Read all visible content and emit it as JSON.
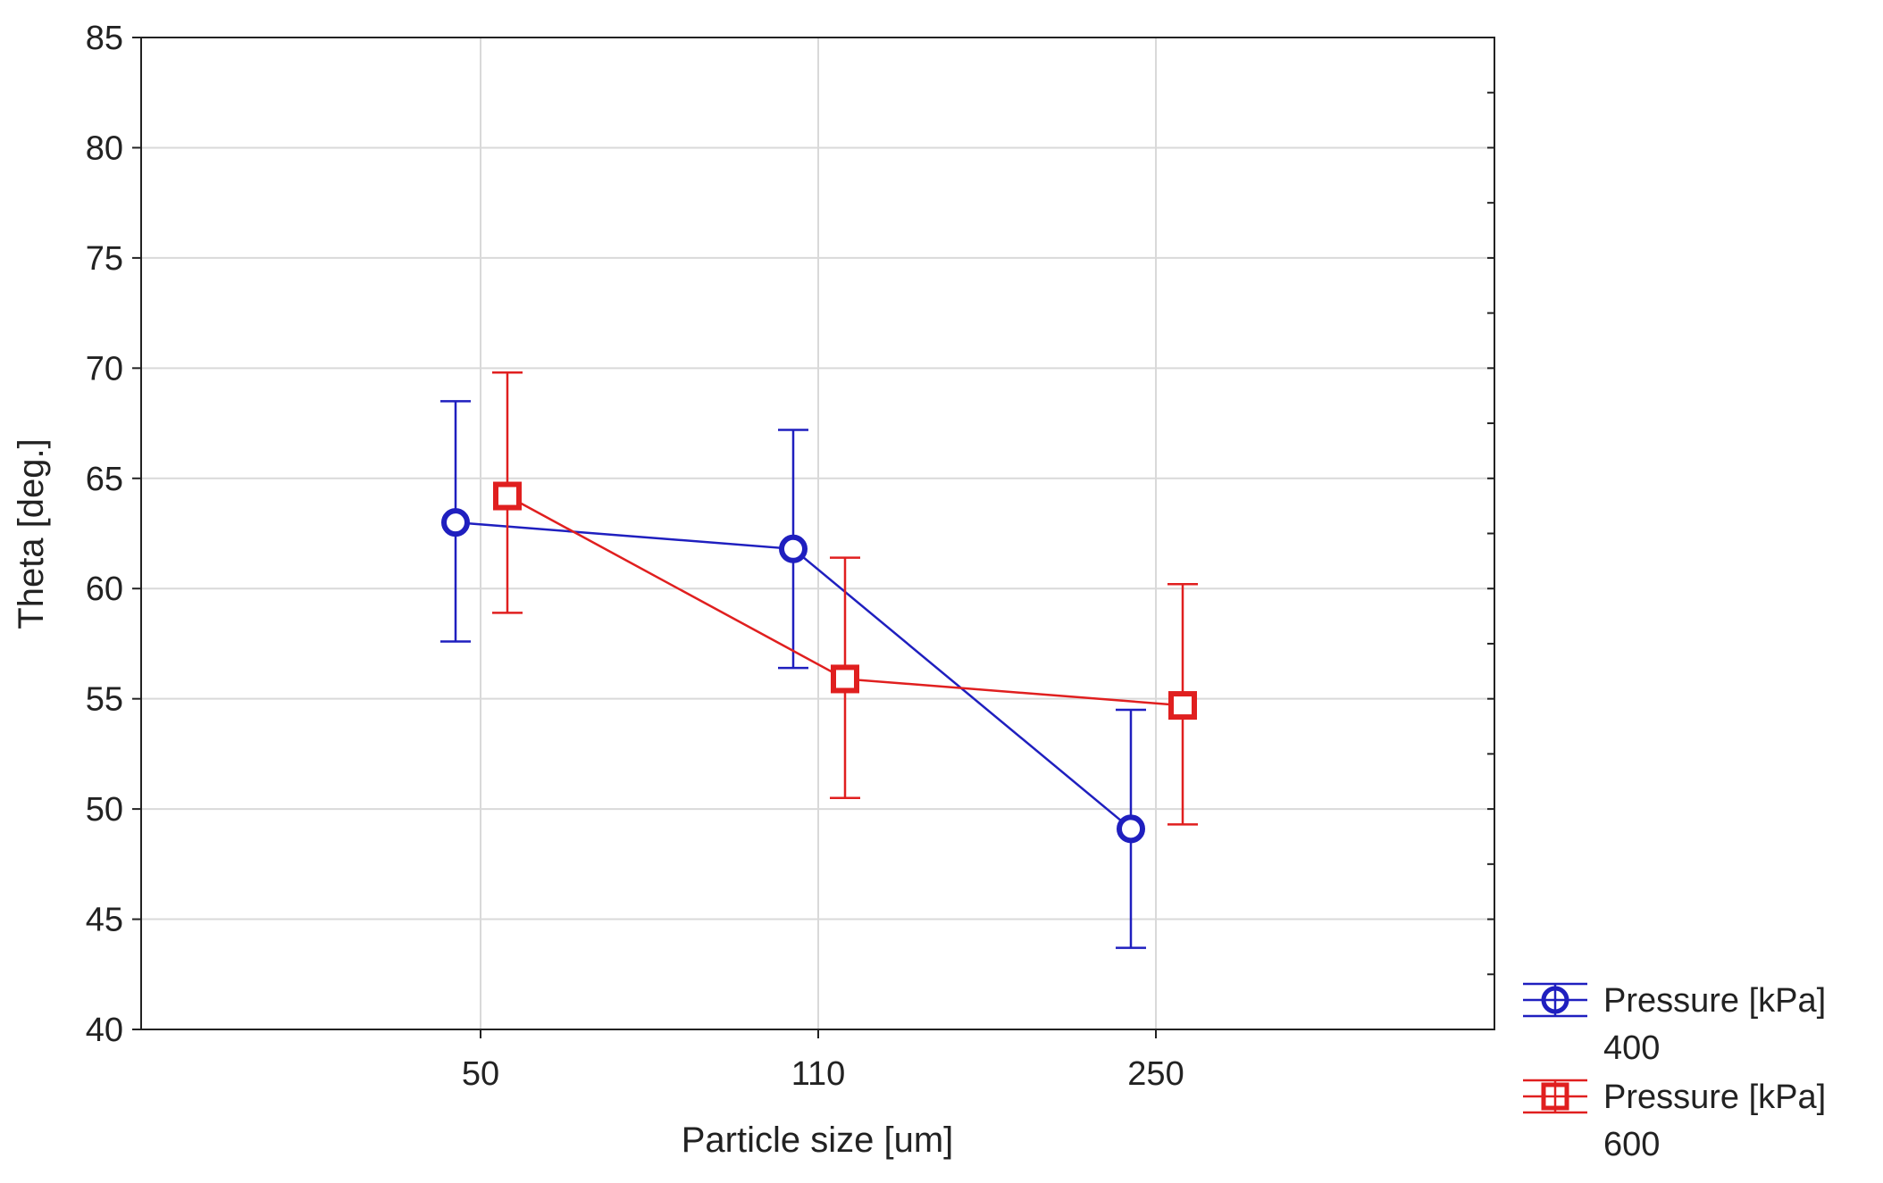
{
  "chart_data": {
    "type": "line",
    "title": "",
    "xlabel": "Particle size [um]",
    "ylabel": "Theta [deg.]",
    "categories": [
      "50",
      "110",
      "250"
    ],
    "ylim": [
      40,
      85
    ],
    "yticks": [
      "40",
      "45",
      "50",
      "55",
      "60",
      "65",
      "70",
      "75",
      "80",
      "85"
    ],
    "grid": true,
    "legend_position": "bottom-right outside",
    "series": [
      {
        "name": "Pressure [kPa] 400",
        "legend_line1": "Pressure [kPa]",
        "legend_line2": "400",
        "color": "#1f1fbf",
        "marker": "circle",
        "values": [
          63.0,
          61.8,
          49.1
        ],
        "error_low": [
          57.6,
          56.4,
          43.7
        ],
        "error_high": [
          68.5,
          67.2,
          54.5
        ]
      },
      {
        "name": "Pressure [kPa] 600",
        "legend_line1": "Pressure [kPa]",
        "legend_line2": "600",
        "color": "#e01f1f",
        "marker": "square",
        "values": [
          64.2,
          55.9,
          54.7
        ],
        "error_low": [
          58.9,
          50.5,
          49.3
        ],
        "error_high": [
          69.8,
          61.4,
          60.2
        ]
      }
    ]
  }
}
